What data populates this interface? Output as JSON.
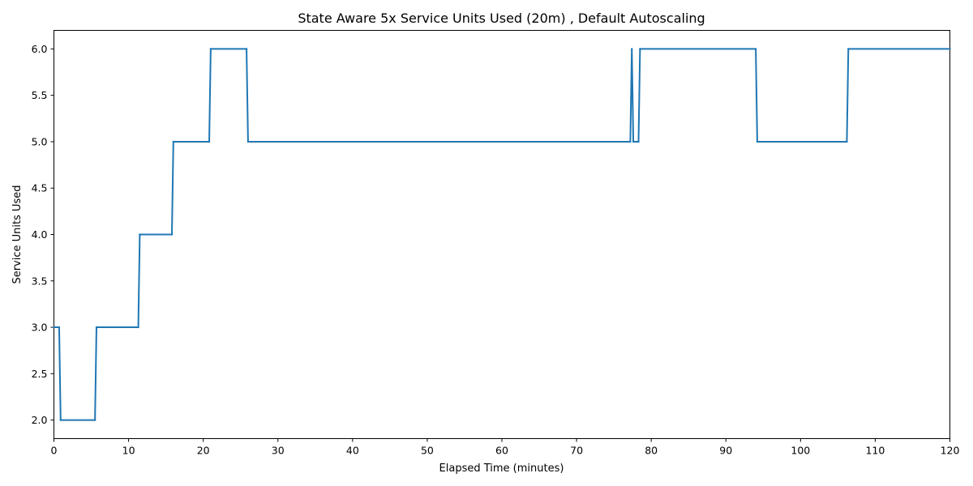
{
  "chart_data": {
    "type": "line",
    "title": "State Aware 5x Service Units Used (20m) , Default Autoscaling",
    "xlabel": "Elapsed Time (minutes)",
    "ylabel": "Service Units Used",
    "xlim": [
      0,
      120
    ],
    "ylim": [
      1.8,
      6.2
    ],
    "xticks": [
      0,
      10,
      20,
      30,
      40,
      50,
      60,
      70,
      80,
      90,
      100,
      110,
      120
    ],
    "yticks": [
      2.0,
      2.5,
      3.0,
      3.5,
      4.0,
      4.5,
      5.0,
      5.5,
      6.0
    ],
    "grid": false,
    "legend": "none",
    "color": "#1f77b4",
    "series": [
      {
        "x": [
          0,
          0.7,
          0.9,
          5.5,
          5.7,
          11.3,
          11.5,
          15.8,
          16.0,
          20.8,
          21.0,
          25.8,
          26.0,
          77.2,
          77.4,
          77.6,
          77.9,
          78.3,
          78.5,
          94.0,
          94.2,
          106.2,
          106.4,
          120
        ],
        "values": [
          3,
          3,
          2,
          2,
          3,
          3,
          4,
          4,
          5,
          5,
          6,
          6,
          5,
          5,
          6,
          5,
          5,
          5,
          6,
          6,
          5,
          5,
          6,
          6
        ]
      }
    ]
  }
}
